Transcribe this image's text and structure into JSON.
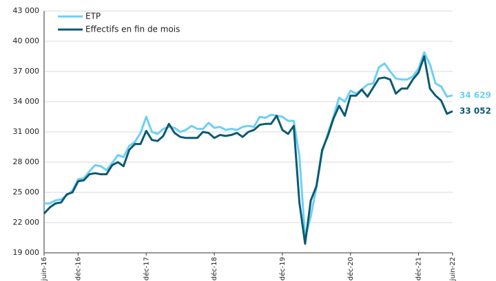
{
  "chart_data": {
    "type": "line",
    "categories": [
      "juin-16",
      null,
      null,
      null,
      null,
      null,
      "déc-16",
      null,
      null,
      null,
      null,
      null,
      null,
      null,
      null,
      null,
      null,
      null,
      "déc-17",
      null,
      null,
      null,
      null,
      null,
      null,
      null,
      null,
      null,
      null,
      null,
      "déc-18",
      null,
      null,
      null,
      null,
      null,
      null,
      null,
      null,
      null,
      null,
      null,
      "déc-19",
      null,
      null,
      null,
      null,
      null,
      null,
      null,
      null,
      null,
      null,
      null,
      "déc-20",
      null,
      null,
      null,
      null,
      null,
      null,
      null,
      null,
      null,
      null,
      null,
      "déc-21",
      null,
      null,
      null,
      null,
      null,
      "juin-22"
    ],
    "series": [
      {
        "name": "ETP",
        "color": "#6dcff6",
        "values": [
          23900,
          23900,
          24200,
          24300,
          24700,
          25200,
          26300,
          26400,
          27100,
          27700,
          27600,
          27200,
          27900,
          28700,
          28500,
          29600,
          30000,
          30900,
          32500,
          31000,
          30800,
          31300,
          31500,
          31400,
          31000,
          31200,
          31600,
          31300,
          31300,
          31900,
          31400,
          31500,
          31200,
          31300,
          31200,
          31500,
          31600,
          31500,
          32500,
          32400,
          32700,
          32600,
          32500,
          32100,
          32100,
          28600,
          20500,
          22600,
          25500,
          29000,
          30800,
          32500,
          34400,
          34000,
          35100,
          34800,
          35200,
          35700,
          35800,
          37400,
          37800,
          37000,
          36300,
          36200,
          36200,
          36500,
          37300,
          38900,
          37700,
          35800,
          35500,
          34500,
          34629
        ],
        "value_labels": [
          null,
          null,
          null,
          null,
          null,
          null,
          null,
          null,
          null,
          null,
          null,
          null,
          null,
          null,
          null,
          null,
          null,
          null,
          null,
          null,
          null,
          null,
          null,
          null,
          null,
          null,
          null,
          null,
          null,
          null,
          null,
          null,
          null,
          null,
          null,
          null,
          null,
          null,
          null,
          null,
          null,
          null,
          null,
          null,
          null,
          null,
          null,
          null,
          null,
          null,
          null,
          null,
          null,
          null,
          null,
          null,
          null,
          null,
          null,
          null,
          null,
          null,
          null,
          null,
          null,
          null,
          null,
          null,
          null,
          null,
          null,
          null,
          "34 629"
        ]
      },
      {
        "name": "Effectifs en fin de mois",
        "color": "#0b5a72",
        "values": [
          22900,
          23500,
          23900,
          24000,
          24800,
          25000,
          26100,
          26200,
          26800,
          26900,
          26800,
          26800,
          27700,
          28000,
          27600,
          29200,
          29800,
          29800,
          31100,
          30200,
          30100,
          30600,
          31800,
          30900,
          30500,
          30400,
          30400,
          30400,
          31000,
          30900,
          30400,
          30700,
          30600,
          30700,
          30900,
          30500,
          31000,
          31200,
          31700,
          31800,
          31800,
          32600,
          31200,
          30800,
          31600,
          24000,
          19900,
          24200,
          25600,
          29200,
          30600,
          32300,
          33600,
          32600,
          34600,
          34600,
          35200,
          34500,
          35400,
          36300,
          36400,
          36200,
          34800,
          35300,
          35300,
          36200,
          36900,
          38500,
          35300,
          34600,
          34100,
          32800,
          33052
        ],
        "value_labels": [
          null,
          null,
          null,
          null,
          null,
          null,
          null,
          null,
          null,
          null,
          null,
          null,
          null,
          null,
          null,
          null,
          null,
          null,
          null,
          null,
          null,
          null,
          null,
          null,
          null,
          null,
          null,
          null,
          null,
          null,
          null,
          null,
          null,
          null,
          null,
          null,
          null,
          null,
          null,
          null,
          null,
          null,
          null,
          null,
          null,
          null,
          null,
          null,
          null,
          null,
          null,
          null,
          null,
          null,
          null,
          null,
          null,
          null,
          null,
          null,
          null,
          null,
          null,
          null,
          null,
          null,
          null,
          null,
          null,
          null,
          null,
          null,
          "33 052"
        ]
      }
    ],
    "ylim": [
      19000,
      43000
    ],
    "yticks": [
      {
        "value": 19000,
        "label": "19 000"
      },
      {
        "value": 22000,
        "label": "22 000"
      },
      {
        "value": 25000,
        "label": "25 000"
      },
      {
        "value": 28000,
        "label": "28 000"
      },
      {
        "value": 31000,
        "label": "31 000"
      },
      {
        "value": 34000,
        "label": "34 000"
      },
      {
        "value": 37000,
        "label": "37 000"
      },
      {
        "value": 40000,
        "label": "40 000"
      },
      {
        "value": 43000,
        "label": "43 000"
      }
    ],
    "grid": true
  }
}
